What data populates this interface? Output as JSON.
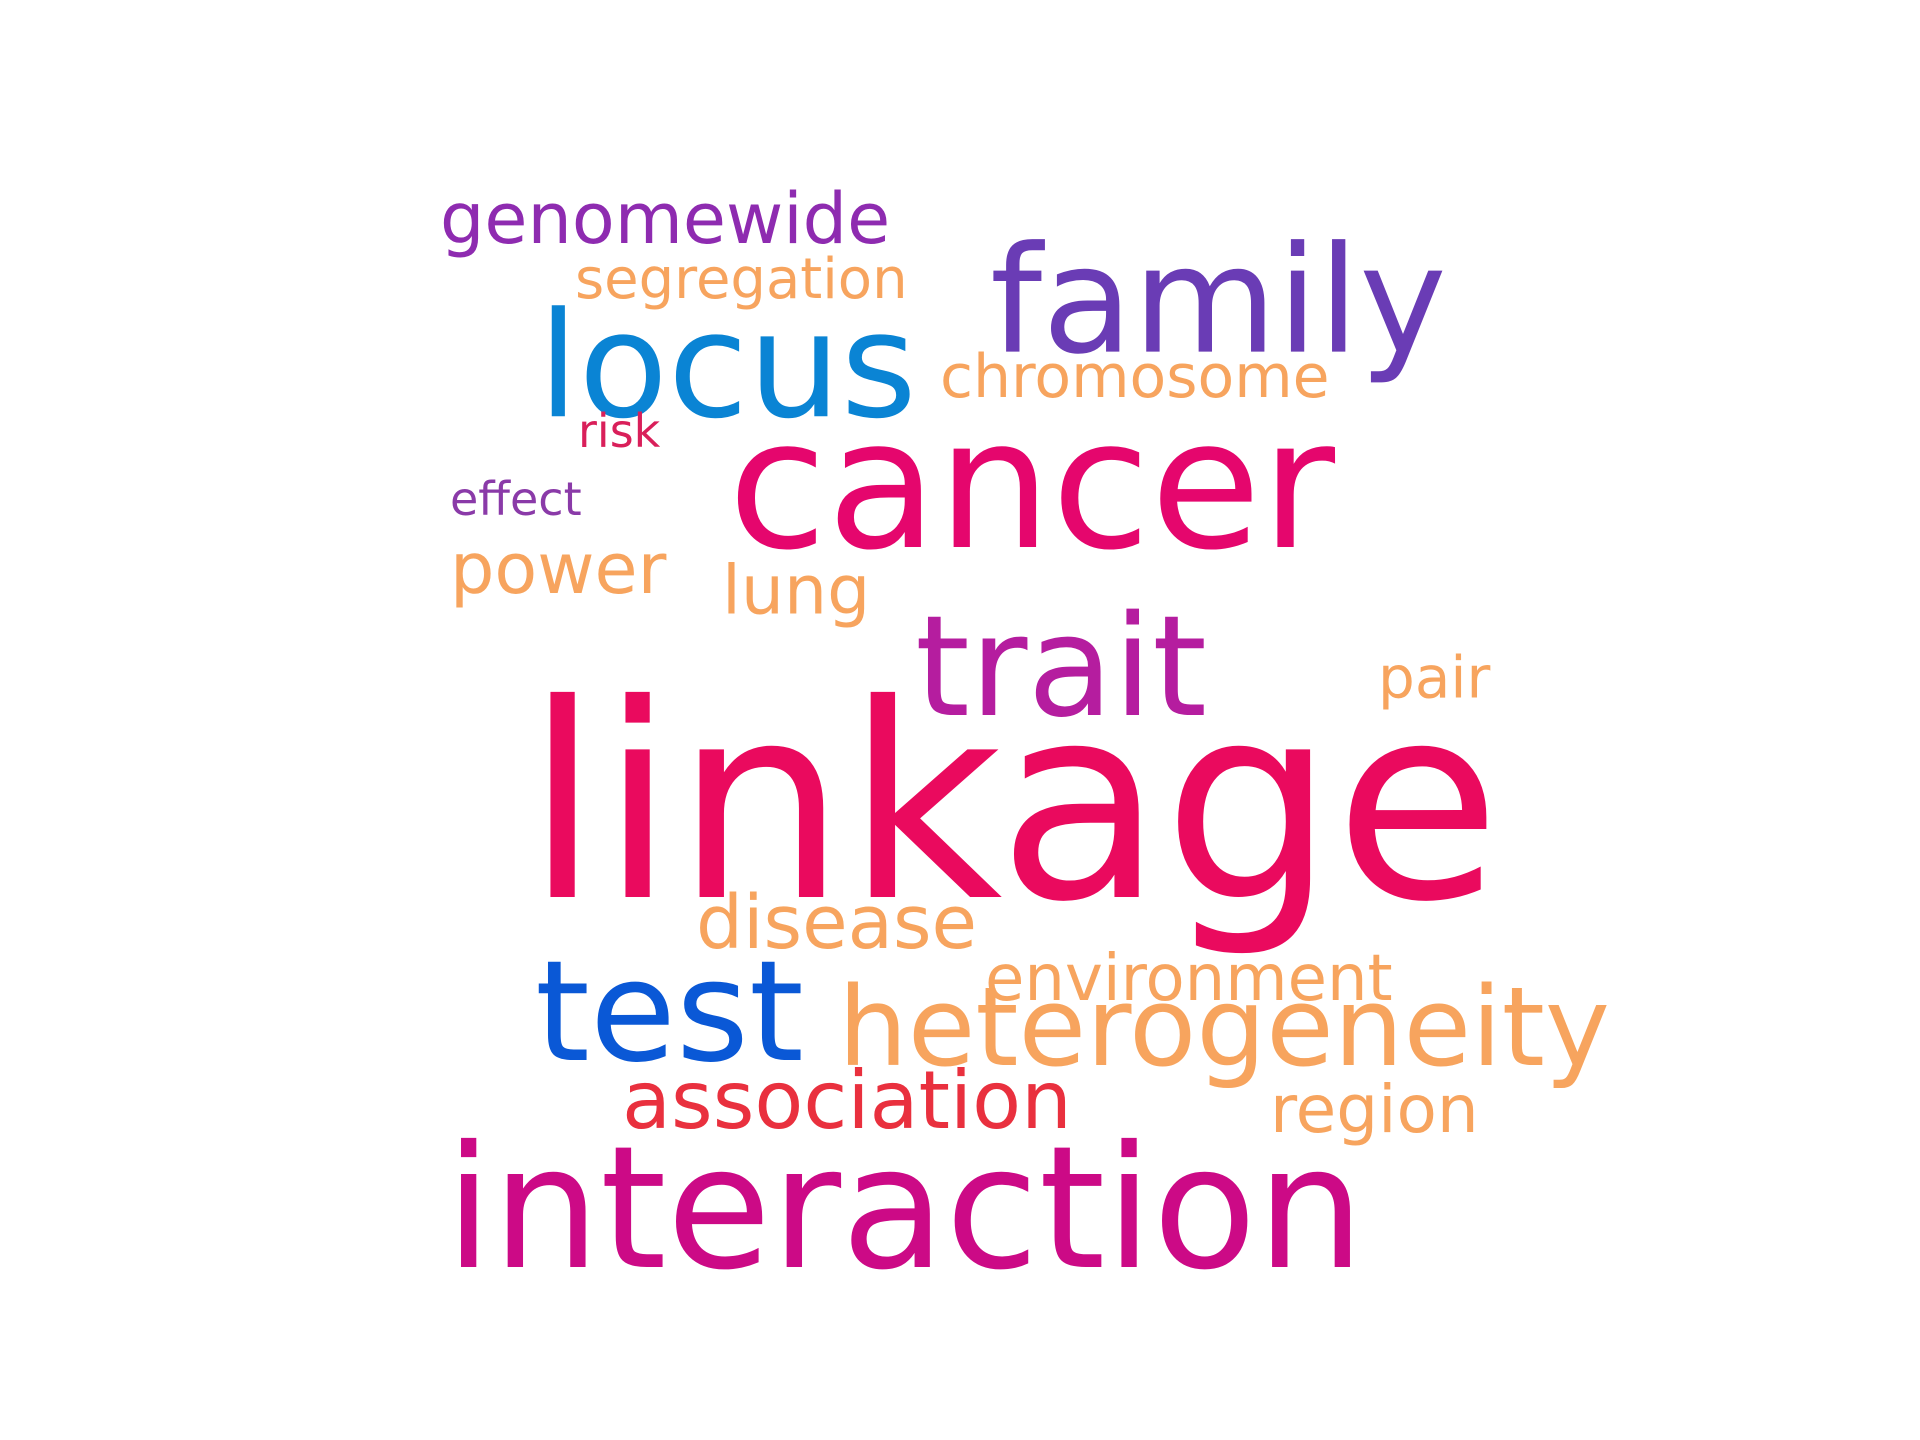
{
  "words": [
    {
      "text": "genomewide",
      "color": "#8e2bb0"
    },
    {
      "text": "segregation",
      "color": "#f7a45e"
    },
    {
      "text": "family",
      "color": "#6a3cb5"
    },
    {
      "text": "locus",
      "color": "#0a84d4"
    },
    {
      "text": "chromosome",
      "color": "#f7a45e"
    },
    {
      "text": "risk",
      "color": "#d91f5a"
    },
    {
      "text": "cancer",
      "color": "#e5066d"
    },
    {
      "text": "effect",
      "color": "#8a3aa8"
    },
    {
      "text": "power",
      "color": "#f7a45e"
    },
    {
      "text": "lung",
      "color": "#f7a45e"
    },
    {
      "text": "trait",
      "color": "#b51d9f"
    },
    {
      "text": "pair",
      "color": "#f7a45e"
    },
    {
      "text": "linkage",
      "color": "#ea0a5e"
    },
    {
      "text": "disease",
      "color": "#f7a45e"
    },
    {
      "text": "environment",
      "color": "#f7a45e"
    },
    {
      "text": "test",
      "color": "#0a58d6"
    },
    {
      "text": "heterogeneity",
      "color": "#f7a45e"
    },
    {
      "text": "association",
      "color": "#e9303e"
    },
    {
      "text": "region",
      "color": "#f7a45e"
    },
    {
      "text": "interaction",
      "color": "#cc0a86"
    }
  ]
}
